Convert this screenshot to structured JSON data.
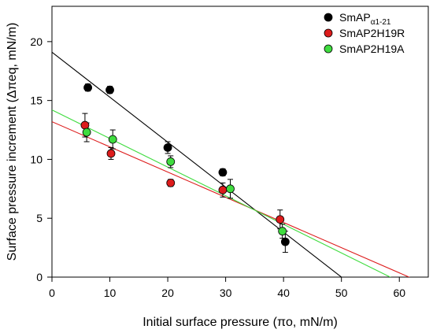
{
  "chart_data": {
    "type": "scatter",
    "xlabel": "Initial surface pressure (πo, mN/m)",
    "ylabel": "Surface pressure increment (Δπeq, mN/m)",
    "xlim": [
      0,
      65
    ],
    "ylim": [
      0,
      23
    ],
    "xticks": [
      0,
      10,
      20,
      30,
      40,
      50,
      60
    ],
    "yticks": [
      0,
      5,
      10,
      15,
      20
    ],
    "grid": false,
    "legend_position": "top-right",
    "series": [
      {
        "name": "SmAPα1-21",
        "legend_main": "SmAP",
        "legend_sub": "α1-21",
        "color": "#000000",
        "points": [
          {
            "x": 6.2,
            "y": 16.1,
            "xerr": 0.6,
            "yerr": 0.3
          },
          {
            "x": 10.0,
            "y": 15.9,
            "xerr": 0.6,
            "yerr": 0.3
          },
          {
            "x": 20.0,
            "y": 11.0,
            "xerr": 0.7,
            "yerr": 0.5
          },
          {
            "x": 29.5,
            "y": 8.9,
            "xerr": 0.5,
            "yerr": 0.3
          },
          {
            "x": 40.3,
            "y": 3.0,
            "xerr": 0.5,
            "yerr": 0.9
          }
        ],
        "fit": {
          "slope": -0.382,
          "intercept": 19.1
        }
      },
      {
        "name": "SmAP2H19R",
        "color": "#dd1c1c",
        "points": [
          {
            "x": 5.7,
            "y": 12.9,
            "xerr": 0.4,
            "yerr": 1.0
          },
          {
            "x": 10.2,
            "y": 10.5,
            "xerr": 0.5,
            "yerr": 0.5
          },
          {
            "x": 20.5,
            "y": 8.0,
            "xerr": 0.5,
            "yerr": 0.3
          },
          {
            "x": 29.5,
            "y": 7.4,
            "xerr": 0.6,
            "yerr": 0.6
          },
          {
            "x": 39.4,
            "y": 4.9,
            "xerr": 0.5,
            "yerr": 0.8
          }
        ],
        "fit": {
          "slope": -0.214,
          "intercept": 13.2
        }
      },
      {
        "name": "SmAP2H19A",
        "color": "#3fdc3f",
        "points": [
          {
            "x": 6.0,
            "y": 12.3,
            "xerr": 0.5,
            "yerr": 0.8
          },
          {
            "x": 10.5,
            "y": 11.7,
            "xerr": 0.7,
            "yerr": 0.8
          },
          {
            "x": 20.5,
            "y": 9.8,
            "xerr": 0.5,
            "yerr": 0.5
          },
          {
            "x": 30.8,
            "y": 7.5,
            "xerr": 0.6,
            "yerr": 0.8
          },
          {
            "x": 39.8,
            "y": 3.9,
            "xerr": 0.5,
            "yerr": 0.6
          }
        ],
        "fit": {
          "slope": -0.243,
          "intercept": 14.2
        }
      }
    ]
  }
}
